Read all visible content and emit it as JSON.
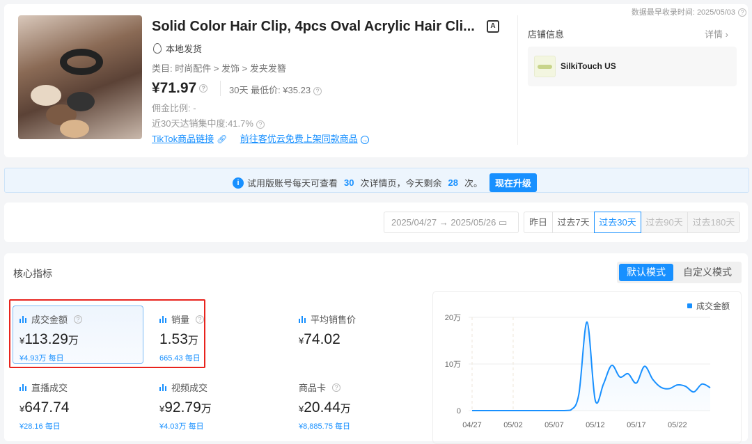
{
  "header": {
    "data_time": "数据最早收录时间: 2025/05/03"
  },
  "product": {
    "title": "Solid Color Hair Clip, 4pcs Oval Acrylic Hair Cli...",
    "shipping": "本地发货",
    "category": "类目: 时尚配件 > 发饰 > 发夹发簪",
    "price": "¥71.97",
    "low_price": "30天 最低价: ¥35.23",
    "commission": "佣金比例: -",
    "concentration": "近30天达销集中度:41.7%",
    "tiktok_link": "TikTok商品链接",
    "list_link": "前往客优云免费上架同款商品"
  },
  "shop": {
    "title": "店铺信息",
    "detail": "详情",
    "name": "SilkiTouch US"
  },
  "banner": {
    "text1": "试用版账号每天可查看",
    "count1": "30",
    "text2": "次详情页，今天剩余",
    "count2": "28",
    "text3": "次。",
    "upgrade": "现在升级"
  },
  "date_filter": {
    "start": "2025/04/27",
    "end": "2025/05/26",
    "options": [
      "昨日",
      "过去7天",
      "过去30天",
      "过去90天",
      "过去180天"
    ],
    "active": "过去30天"
  },
  "metrics_section": {
    "title": "核心指标",
    "modes": [
      "默认模式",
      "自定义模式"
    ],
    "active_mode": "默认模式"
  },
  "metrics": [
    {
      "label": "成交金额",
      "prefix": "¥",
      "value": "113.29",
      "unit": "万",
      "daily": "¥4.93万 每日"
    },
    {
      "label": "销量",
      "prefix": "",
      "value": "1.53",
      "unit": "万",
      "daily": "665.43 每日"
    },
    {
      "label": "平均销售价",
      "prefix": "¥",
      "value": "74.02",
      "unit": "",
      "daily": ""
    },
    {
      "label": "直播成交",
      "prefix": "¥",
      "value": "647.74",
      "unit": "",
      "daily": "¥28.16 每日"
    },
    {
      "label": "视频成交",
      "prefix": "¥",
      "value": "92.79",
      "unit": "万",
      "daily": "¥4.03万 每日"
    },
    {
      "label": "商品卡",
      "prefix": "¥",
      "value": "20.44",
      "unit": "万",
      "daily": "¥8,885.75 每日"
    }
  ],
  "chart_data": {
    "type": "area",
    "legend": "成交金额",
    "legend_position": "top-right",
    "color": "#1890ff",
    "x": [
      "04/27",
      "04/28",
      "04/29",
      "04/30",
      "05/01",
      "05/02",
      "05/03",
      "05/04",
      "05/05",
      "05/06",
      "05/07",
      "05/08",
      "05/09",
      "05/10",
      "05/11",
      "05/12",
      "05/13",
      "05/14",
      "05/15",
      "05/16",
      "05/17",
      "05/18",
      "05/19",
      "05/20",
      "05/21",
      "05/22",
      "05/23",
      "05/24",
      "05/25",
      "05/26"
    ],
    "values": [
      0,
      0,
      0,
      0,
      0,
      0,
      0,
      0,
      0,
      0,
      0,
      0,
      0.1,
      3.5,
      19.0,
      2.2,
      5.7,
      9.7,
      7.2,
      7.9,
      5.9,
      9.5,
      6.7,
      5.0,
      4.7,
      5.5,
      5.2,
      4.0,
      5.7,
      4.9
    ],
    "xticks": [
      "04/27",
      "05/02",
      "05/07",
      "05/12",
      "05/17",
      "05/22"
    ],
    "yticks": [
      "0",
      "10万",
      "20万"
    ],
    "ylim": [
      0,
      20
    ],
    "y_unit": "万",
    "grid": true
  }
}
